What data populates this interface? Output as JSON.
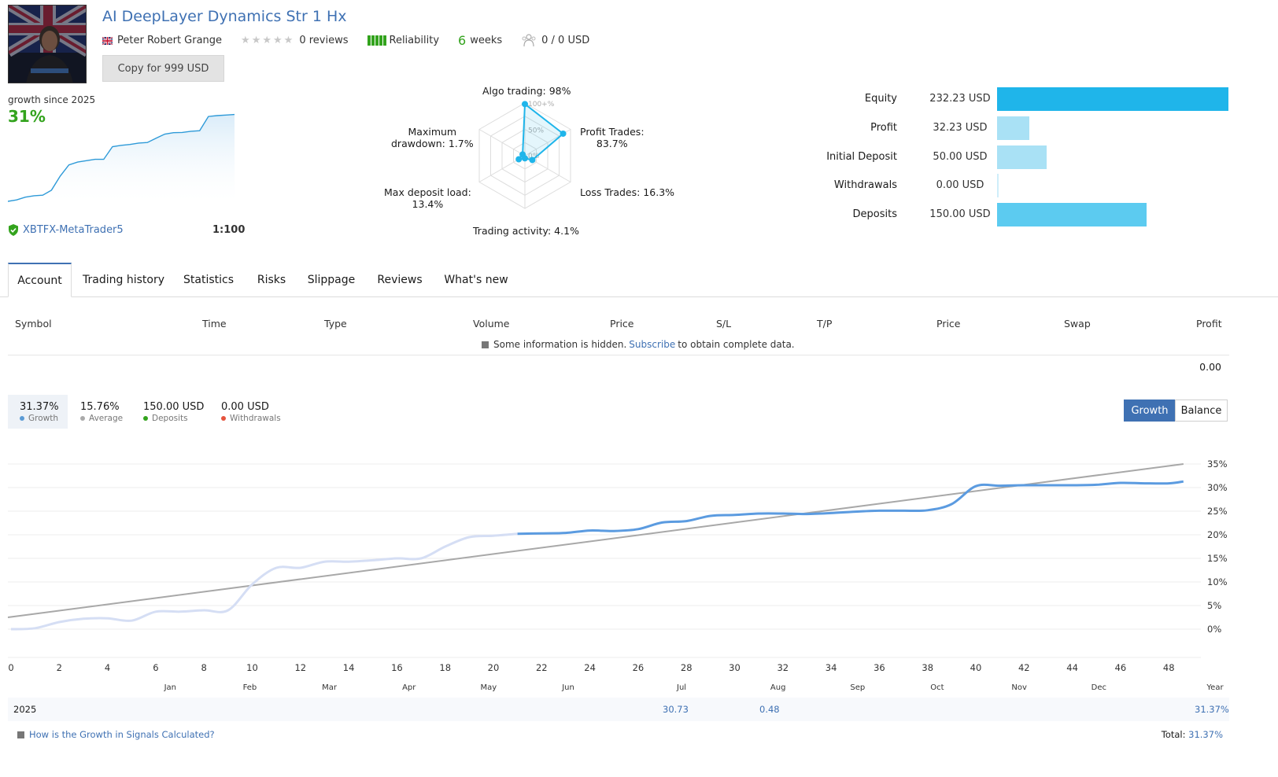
{
  "header": {
    "title": "AI DeepLayer Dynamics Str 1 Hx",
    "author": "Peter Robert Grange",
    "reviews": "0 reviews",
    "reliability_label": "Reliability",
    "weeks_num": "6",
    "weeks_label": "weeks",
    "subscribers": "0 / 0 USD",
    "copy_button": "Copy for 999 USD",
    "icons": [
      "uk-flag-icon",
      "star-icon",
      "reliability-bars-icon",
      "subscribers-icon"
    ]
  },
  "growth_card": {
    "label": "growth since 2025",
    "value": "31%",
    "broker": "XBTFX-MetaTrader5",
    "leverage": "1:100",
    "sparkline": [
      0,
      0.5,
      1.5,
      2,
      2.2,
      4,
      9,
      13,
      14,
      14.5,
      15,
      15,
      19.5,
      20,
      20.3,
      20.8,
      21,
      22.5,
      24,
      24.5,
      24.6,
      25,
      25.2,
      30.3,
      30.6,
      30.8,
      31
    ]
  },
  "radar": {
    "algo": "Algo trading: 98%",
    "profit_trades": [
      "Profit Trades:",
      "83.7%"
    ],
    "loss_trades": "Loss Trades: 16.3%",
    "activity": "Trading activity: 4.1%",
    "deposit_load": [
      "Max deposit load:",
      "13.4%"
    ],
    "drawdown": [
      "Maximum",
      "drawdown: 1.7%"
    ],
    "scale": [
      "100+%",
      "50%",
      "0%"
    ],
    "values": [
      98,
      83.7,
      16.3,
      4.1,
      13.4,
      1.7
    ]
  },
  "stats": [
    {
      "label": "Equity",
      "value": "232.23 USD",
      "amount": 232.23,
      "color": "#1fb5ea"
    },
    {
      "label": "Profit",
      "value": "32.23 USD",
      "amount": 32.23,
      "color": "#a9e1f5"
    },
    {
      "label": "Initial Deposit",
      "value": "50.00 USD",
      "amount": 50.0,
      "color": "#a9e1f5"
    },
    {
      "label": "Withdrawals",
      "value": "0.00 USD",
      "amount": 0.0,
      "color": "#cfeefa"
    },
    {
      "label": "Deposits",
      "value": "150.00 USD",
      "amount": 150.0,
      "color": "#5ccbf0"
    }
  ],
  "tabs": [
    "Account",
    "Trading history",
    "Statistics",
    "Risks",
    "Slippage",
    "Reviews",
    "What's new"
  ],
  "table": {
    "headers": [
      "Symbol",
      "Time",
      "Type",
      "Volume",
      "Price",
      "S/L",
      "T/P",
      "Price",
      "Swap",
      "Profit"
    ],
    "hidden_note_before": "Some information is hidden.",
    "hidden_note_link": "Subscribe",
    "hidden_note_after": "to obtain complete data.",
    "total_profit": "0.00"
  },
  "summary": {
    "growth": {
      "value": "31.37%",
      "label": "Growth",
      "color": "#5b9bd5"
    },
    "average": {
      "value": "15.76%",
      "label": "Average",
      "color": "#aaaaaa"
    },
    "deposits": {
      "value": "150.00 USD",
      "label": "Deposits",
      "color": "#33a31d"
    },
    "withdrawals": {
      "value": "0.00 USD",
      "label": "Withdrawals",
      "color": "#e5533d"
    }
  },
  "toggle": {
    "growth": "Growth",
    "balance": "Balance"
  },
  "chart_data": {
    "type": "line",
    "x_ticks": [
      "0",
      "2",
      "4",
      "6",
      "8",
      "10",
      "12",
      "14",
      "16",
      "18",
      "20",
      "22",
      "24",
      "26",
      "28",
      "30",
      "32",
      "34",
      "36",
      "38",
      "40",
      "42",
      "44",
      "46",
      "48"
    ],
    "month_labels": [
      "Jan",
      "Feb",
      "Mar",
      "Apr",
      "May",
      "Jun",
      "Jul",
      "Aug",
      "Sep",
      "Oct",
      "Nov",
      "Dec",
      "Year"
    ],
    "y_ticks": [
      "35%",
      "30%",
      "25%",
      "20%",
      "15%",
      "10%",
      "5%",
      "0%"
    ],
    "ylim": [
      -3,
      37
    ],
    "series": [
      {
        "name": "Growth",
        "x": [
          0,
          1,
          2,
          3,
          4,
          5,
          6,
          7,
          8,
          9,
          10,
          11,
          12,
          13,
          14,
          15,
          16,
          17,
          18,
          19,
          20,
          21,
          22,
          23,
          24,
          25,
          26,
          27,
          28,
          29,
          30,
          31,
          32,
          33,
          34,
          35,
          36,
          37,
          38,
          39,
          40,
          41,
          42,
          43,
          44,
          45,
          46,
          47,
          48,
          49
        ],
        "values": [
          0,
          0.2,
          1.5,
          2.2,
          2.3,
          1.8,
          3.7,
          3.7,
          4,
          4,
          9.5,
          13,
          13,
          14.3,
          14.3,
          14.6,
          15,
          15,
          17.5,
          19.5,
          19.8,
          20.2,
          20.3,
          20.4,
          20.9,
          20.8,
          21.2,
          22.6,
          22.9,
          24,
          24.2,
          24.5,
          24.5,
          24.4,
          24.6,
          24.9,
          25.1,
          25.1,
          25.2,
          26.5,
          30.3,
          30.4,
          30.5,
          30.5,
          30.5,
          30.6,
          31,
          30.9,
          30.9,
          31.3
        ],
        "muted_until_x": 21
      },
      {
        "name": "Average",
        "x": [
          0,
          49
        ],
        "values": [
          2.5,
          35
        ]
      }
    ]
  },
  "year_table": {
    "year": "2025",
    "jul": "30.73",
    "aug": "0.48",
    "total": "31.37%"
  },
  "footer": {
    "link": "How is the Growth in Signals Calculated?",
    "total_label": "Total:",
    "total_value": "31.37%"
  }
}
